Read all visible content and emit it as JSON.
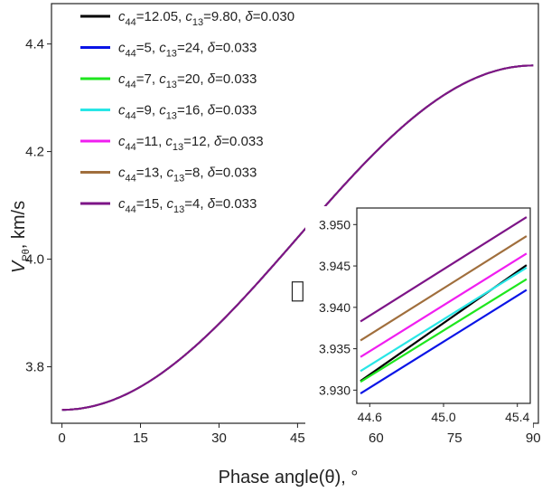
{
  "chart_data": {
    "type": "line",
    "xlabel": "Phase angle(θ), °",
    "ylabel": {
      "main": "V",
      "sub": "Pθ",
      "unit": ", km/s"
    },
    "xlim": [
      -2,
      91
    ],
    "ylim": [
      3.695,
      4.475
    ],
    "xticks": [
      0,
      15,
      30,
      45,
      60,
      75,
      90
    ],
    "yticks": [
      3.8,
      4.0,
      4.2,
      4.4
    ],
    "ytick_labels": [
      "3.8",
      "4.0",
      "4.2",
      "4.4"
    ],
    "grid": false,
    "legend_position": "top-left",
    "series": [
      {
        "color": "#000000",
        "label": {
          "c44": "12.05",
          "c13": "9.80",
          "delta": "0.030"
        },
        "v0": 3.72,
        "v90": 4.36,
        "inset_y": [
          3.9311,
          3.9451
        ]
      },
      {
        "color": "#0a14e6",
        "label": {
          "c44": "5",
          "c13": "24",
          "delta": "0.033"
        },
        "v0": 3.72,
        "v90": 4.36,
        "inset_y": [
          3.9296,
          3.9421
        ]
      },
      {
        "color": "#1ee61e",
        "label": {
          "c44": "7",
          "c13": "20",
          "delta": "0.033"
        },
        "v0": 3.72,
        "v90": 4.36,
        "inset_y": [
          3.931,
          3.9434
        ]
      },
      {
        "color": "#28e6e6",
        "label": {
          "c44": "9",
          "c13": "16",
          "delta": "0.033"
        },
        "v0": 3.72,
        "v90": 4.36,
        "inset_y": [
          3.9323,
          3.9448
        ]
      },
      {
        "color": "#f01ef0",
        "label": {
          "c44": "11",
          "c13": "12",
          "delta": "0.033"
        },
        "v0": 3.72,
        "v90": 4.36,
        "inset_y": [
          3.934,
          3.9465
        ]
      },
      {
        "color": "#a06e3c",
        "label": {
          "c44": "13",
          "c13": "8",
          "delta": "0.033"
        },
        "v0": 3.72,
        "v90": 4.36,
        "inset_y": [
          3.936,
          3.9486
        ]
      },
      {
        "color": "#7d1487",
        "label": {
          "c44": "15",
          "c13": "4",
          "delta": "0.033"
        },
        "v0": 3.72,
        "v90": 4.36,
        "inset_y": [
          3.9383,
          3.9509
        ]
      }
    ],
    "inset": {
      "xlim": [
        44.53,
        45.47
      ],
      "ylim": [
        3.9284,
        3.952
      ],
      "xticks": [
        44.6,
        45.0,
        45.4
      ],
      "xtick_labels": [
        "44.6",
        "45.0",
        "45.4"
      ],
      "yticks": [
        3.93,
        3.935,
        3.94,
        3.945,
        3.95
      ],
      "ytick_labels": [
        "3.930",
        "3.935",
        "3.940",
        "3.945",
        "3.950"
      ],
      "x_range": [
        44.55,
        45.45
      ],
      "zoom_box": {
        "x": [
          44.5,
          45.5
        ],
        "y": [
          3.929,
          3.951
        ]
      }
    }
  }
}
